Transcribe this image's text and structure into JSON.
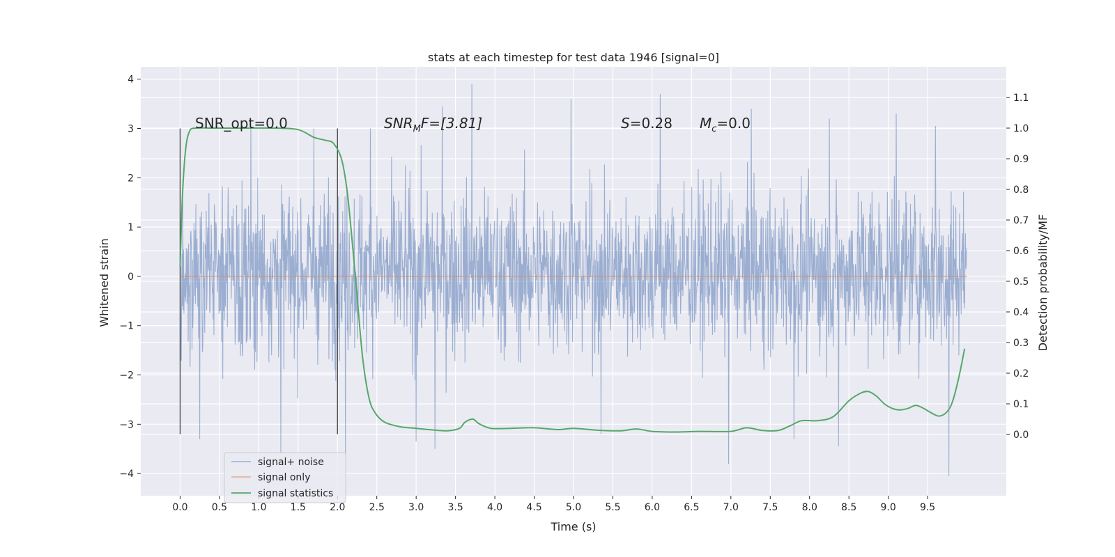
{
  "chart_data": {
    "type": "line",
    "title": "stats at each timestep for test data 1946 [signal=0]",
    "xlabel": "Time (s)",
    "ylabel": "Whitened strain",
    "y2label": "Detection probability/MF",
    "xlim": [
      -0.5,
      10.5
    ],
    "ylim": [
      -4.45,
      4.25
    ],
    "y2lim": [
      -0.2,
      1.2
    ],
    "x_ticks": [
      "0.0",
      "0.5",
      "1.0",
      "1.5",
      "2.0",
      "2.5",
      "3.0",
      "3.5",
      "4.0",
      "4.5",
      "5.0",
      "5.5",
      "6.0",
      "6.5",
      "7.0",
      "7.5",
      "8.0",
      "8.5",
      "9.0",
      "9.5"
    ],
    "x_tick_values": [
      0,
      0.5,
      1,
      1.5,
      2,
      2.5,
      3,
      3.5,
      4,
      4.5,
      5,
      5.5,
      6,
      6.5,
      7,
      7.5,
      8,
      8.5,
      9,
      9.5
    ],
    "y_ticks": [
      "4",
      "3",
      "2",
      "1",
      "0",
      "−1",
      "−2",
      "−3",
      "−4"
    ],
    "y_tick_values": [
      4,
      3,
      2,
      1,
      0,
      -1,
      -2,
      -3,
      -4
    ],
    "y2_ticks": [
      "1.1",
      "1.0",
      "0.9",
      "0.8",
      "0.7",
      "0.6",
      "0.5",
      "0.4",
      "0.3",
      "0.2",
      "0.1",
      "0.0"
    ],
    "y2_tick_values": [
      1.1,
      1.0,
      0.9,
      0.8,
      0.7,
      0.6,
      0.5,
      0.4,
      0.3,
      0.2,
      0.1,
      0.0
    ],
    "grid": true,
    "legend_position": "lower-left",
    "legend": [
      "signal+ noise",
      "signal only",
      "signal statistics"
    ],
    "annotations": {
      "snr_opt": "SNR_opt=0.0",
      "snr_mf_main": "SNR",
      "snr_mf_sub": "M",
      "snr_mf_rest": "F=[3.81]",
      "s_main": "S",
      "s_rest": "=0.28",
      "mc_main": "M",
      "mc_sub": "c",
      "mc_rest": "=0.0"
    },
    "vlines": [
      {
        "x": 0.0,
        "ymin": -3.2,
        "ymax": 3.0
      },
      {
        "x": 2.0,
        "ymin": -3.2,
        "ymax": 3.0
      }
    ],
    "series": [
      {
        "name": "signal+ noise",
        "color": "#4c72b0",
        "opacity": 0.5,
        "x_range": [
          0.0,
          10.0
        ],
        "typical_range": [
          -2.4,
          2.6
        ],
        "extremes": [
          {
            "x": 0.9,
            "y": 3.1
          },
          {
            "x": 1.7,
            "y": 3.0
          },
          {
            "x": 2.42,
            "y": 3.0
          },
          {
            "x": 3.33,
            "y": 3.45
          },
          {
            "x": 3.71,
            "y": 3.9
          },
          {
            "x": 4.97,
            "y": 3.6
          },
          {
            "x": 6.1,
            "y": 3.7
          },
          {
            "x": 7.26,
            "y": 3.4
          },
          {
            "x": 8.25,
            "y": 3.2
          },
          {
            "x": 9.1,
            "y": 3.3
          },
          {
            "x": 9.6,
            "y": 3.05
          },
          {
            "x": 0.25,
            "y": -3.3
          },
          {
            "x": 1.28,
            "y": -3.6
          },
          {
            "x": 2.1,
            "y": -3.65
          },
          {
            "x": 3.0,
            "y": -3.35
          },
          {
            "x": 3.24,
            "y": -3.5
          },
          {
            "x": 5.35,
            "y": -3.2
          },
          {
            "x": 6.97,
            "y": -3.8
          },
          {
            "x": 7.8,
            "y": -3.3
          },
          {
            "x": 8.37,
            "y": -3.45
          },
          {
            "x": 9.77,
            "y": -4.05
          }
        ]
      },
      {
        "name": "signal only",
        "color": "#dd8452",
        "x": [
          0.0,
          10.0
        ],
        "y": [
          0.0,
          0.0
        ]
      },
      {
        "name": "signal statistics",
        "color": "#55a868",
        "axis": "right",
        "x": [
          0.0,
          0.03,
          0.07,
          0.12,
          0.2,
          0.4,
          0.8,
          1.2,
          1.5,
          1.7,
          1.85,
          1.95,
          2.05,
          2.12,
          2.18,
          2.25,
          2.32,
          2.4,
          2.48,
          2.6,
          2.8,
          3.0,
          3.2,
          3.4,
          3.55,
          3.62,
          3.72,
          3.8,
          3.95,
          4.2,
          4.5,
          4.8,
          5.0,
          5.3,
          5.6,
          5.8,
          6.0,
          6.3,
          6.6,
          7.0,
          7.2,
          7.4,
          7.6,
          7.75,
          7.9,
          8.1,
          8.3,
          8.5,
          8.65,
          8.75,
          8.85,
          8.95,
          9.05,
          9.15,
          9.25,
          9.35,
          9.45,
          9.55,
          9.65,
          9.75,
          9.82,
          9.9,
          9.97
        ],
        "y": [
          0.55,
          0.78,
          0.93,
          0.99,
          1.0,
          1.0,
          1.0,
          1.0,
          0.995,
          0.97,
          0.96,
          0.95,
          0.9,
          0.8,
          0.65,
          0.45,
          0.25,
          0.12,
          0.07,
          0.04,
          0.025,
          0.02,
          0.015,
          0.012,
          0.02,
          0.04,
          0.05,
          0.035,
          0.02,
          0.02,
          0.022,
          0.016,
          0.02,
          0.014,
          0.012,
          0.018,
          0.01,
          0.008,
          0.01,
          0.01,
          0.022,
          0.013,
          0.013,
          0.028,
          0.045,
          0.045,
          0.058,
          0.11,
          0.135,
          0.14,
          0.125,
          0.1,
          0.085,
          0.08,
          0.085,
          0.095,
          0.085,
          0.07,
          0.06,
          0.075,
          0.11,
          0.19,
          0.28
        ]
      }
    ]
  }
}
